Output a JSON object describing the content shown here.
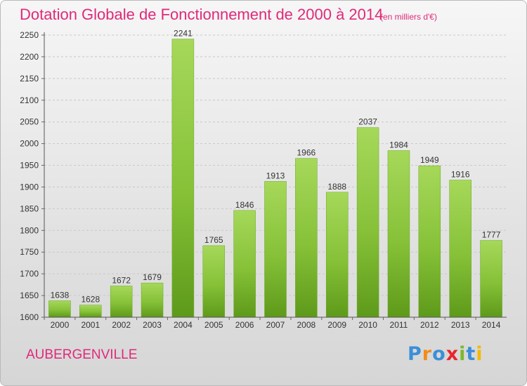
{
  "header": {
    "title": "Dotation Globale de Fonctionnement de 2000 à 2014",
    "unit": "(en milliers d'€)"
  },
  "footer": {
    "commune": "AUBERGENVILLE",
    "logo_text": "Proxiti",
    "logo_colors": [
      "#3a8fd8",
      "#f28c1a",
      "#3a8fd8",
      "#e8262d",
      "#7cb82f",
      "#3a8fd8",
      "#f5b800"
    ]
  },
  "chart_data": {
    "type": "bar",
    "title": "Dotation Globale de Fonctionnement de 2000 à 2014",
    "xlabel": "",
    "ylabel": "",
    "categories": [
      "2000",
      "2001",
      "2002",
      "2003",
      "2004",
      "2005",
      "2006",
      "2007",
      "2008",
      "2009",
      "2010",
      "2011",
      "2012",
      "2013",
      "2014"
    ],
    "values": [
      1638,
      1628,
      1672,
      1679,
      2241,
      1765,
      1846,
      1913,
      1966,
      1888,
      2037,
      1984,
      1949,
      1916,
      1777
    ],
    "ylim": [
      1600,
      2250
    ],
    "yticks": [
      1600,
      1650,
      1700,
      1750,
      1800,
      1850,
      1900,
      1950,
      2000,
      2050,
      2100,
      2150,
      2200,
      2250
    ],
    "grid": true,
    "data_labels": true,
    "bar_color": "#8cc63f",
    "bar_color_dark": "#5e9a1a"
  }
}
